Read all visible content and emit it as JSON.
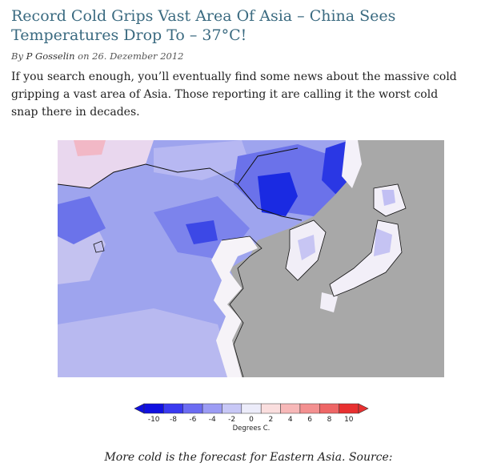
{
  "article": {
    "title": "Record Cold Grips Vast Area Of Asia – China Sees Temperatures Drop To – 37°C!",
    "byline_prefix": "By",
    "author": "P Gosselin",
    "date_prefix": "on",
    "date": "26. Dezember 2012",
    "intro": "If you search enough, you’ll eventually find some news about the massive cold gripping a vast area of Asia. Those reporting it are calling it the worst cold snap there in decades."
  },
  "map": {
    "legend_ticks": [
      "-10",
      "-8",
      "-6",
      "-4",
      "-2",
      "0",
      "2",
      "4",
      "6",
      "8",
      "10"
    ],
    "legend_unit": "Degrees C.",
    "legend_colors": [
      "#1010e0",
      "#3a3af0",
      "#6c6cf2",
      "#9c9cf4",
      "#c8c8f6",
      "#ececfa",
      "#fadede",
      "#f7b8b8",
      "#f39090",
      "#ee6666",
      "#e83030"
    ],
    "land_color": "#a8a8a8",
    "caption": "More cold is the forecast for Eastern Asia. Source:"
  }
}
